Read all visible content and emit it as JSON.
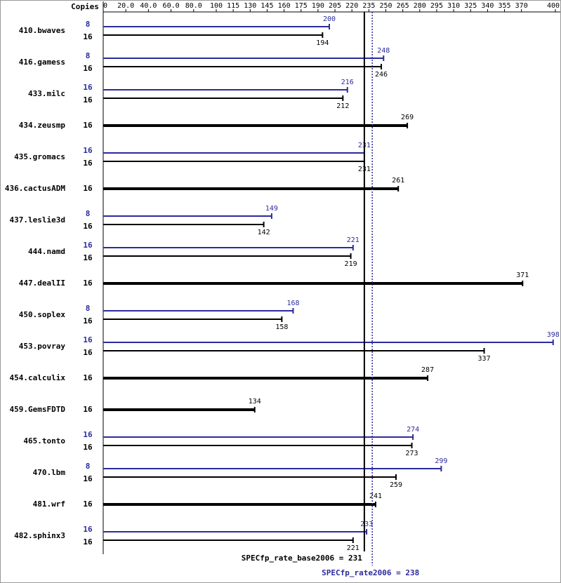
{
  "chart_data": {
    "type": "bar",
    "orientation": "horizontal",
    "copies_label": "Copies",
    "categories": [
      "410.bwaves",
      "416.gamess",
      "433.milc",
      "434.zeusmp",
      "435.gromacs",
      "436.cactusADM",
      "437.leslie3d",
      "444.namd",
      "447.dealII",
      "450.soplex",
      "453.povray",
      "454.calculix",
      "459.GemsFDTD",
      "465.tonto",
      "470.lbm",
      "481.wrf",
      "482.sphinx3"
    ],
    "series": [
      {
        "color": "#2b2b9c",
        "copies": [
          8,
          8,
          16,
          null,
          16,
          null,
          8,
          16,
          null,
          8,
          16,
          null,
          null,
          16,
          8,
          null,
          16
        ],
        "values": [
          200,
          248,
          216,
          null,
          231,
          null,
          149,
          221,
          null,
          168,
          398,
          null,
          null,
          274,
          299,
          null,
          233
        ]
      },
      {
        "color": "#000000",
        "copies": [
          16,
          16,
          16,
          16,
          16,
          16,
          16,
          16,
          16,
          16,
          16,
          16,
          16,
          16,
          16,
          16,
          16
        ],
        "values": [
          194,
          246,
          212,
          269,
          231,
          261,
          142,
          219,
          371,
          158,
          337,
          287,
          134,
          273,
          259,
          241,
          221
        ]
      }
    ],
    "xlim": [
      0,
      400
    ],
    "xticks": [
      0,
      {
        "value": 20,
        "label": "20.0"
      },
      {
        "value": 40,
        "label": "40.0"
      },
      {
        "value": 60,
        "label": "60.0"
      },
      {
        "value": 80,
        "label": "80.0"
      },
      100,
      115,
      130,
      145,
      160,
      175,
      190,
      205,
      220,
      235,
      250,
      265,
      280,
      295,
      310,
      325,
      340,
      355,
      370,
      400
    ],
    "reference_lines": [
      {
        "label": "SPECfp_rate_base2006 = 231",
        "value": 231,
        "color": "#000000",
        "dashed": false
      },
      {
        "label": "SPECfp_rate2006 = 238",
        "value": 238,
        "color": "#2b2b9c",
        "dashed": true
      }
    ]
  }
}
